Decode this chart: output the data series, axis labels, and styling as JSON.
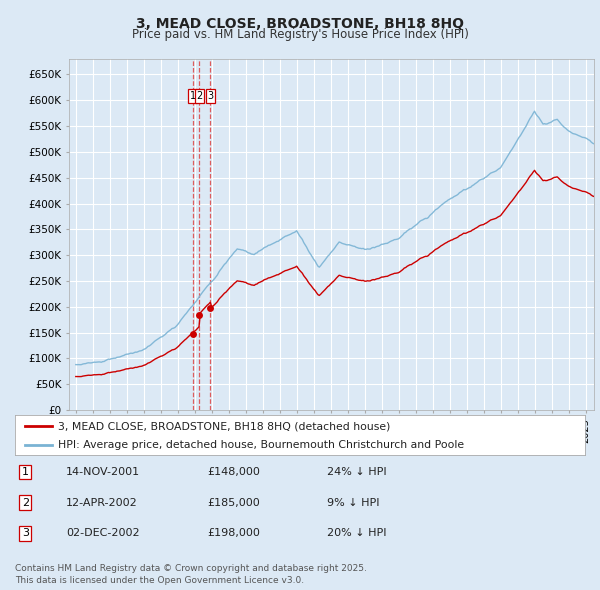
{
  "title": "3, MEAD CLOSE, BROADSTONE, BH18 8HQ",
  "subtitle": "Price paid vs. HM Land Registry's House Price Index (HPI)",
  "bg_color": "#dce9f5",
  "plot_bg_color": "#dce9f5",
  "grid_color": "#ffffff",
  "ylim": [
    0,
    680000
  ],
  "yticks": [
    0,
    50000,
    100000,
    150000,
    200000,
    250000,
    300000,
    350000,
    400000,
    450000,
    500000,
    550000,
    600000,
    650000
  ],
  "ytick_labels": [
    "£0",
    "£50K",
    "£100K",
    "£150K",
    "£200K",
    "£250K",
    "£300K",
    "£350K",
    "£400K",
    "£450K",
    "£500K",
    "£550K",
    "£600K",
    "£650K"
  ],
  "hpi_color": "#7ab3d4",
  "price_color": "#cc0000",
  "vline_color": "#dd4444",
  "transactions": [
    {
      "num": 1,
      "date_num": 2001.87,
      "price": 148000,
      "label": "1"
    },
    {
      "num": 2,
      "date_num": 2002.28,
      "price": 185000,
      "label": "2"
    },
    {
      "num": 3,
      "date_num": 2002.92,
      "price": 198000,
      "label": "3"
    }
  ],
  "transaction_rows": [
    {
      "num": "1",
      "date": "14-NOV-2001",
      "price": "£148,000",
      "pct": "24% ↓ HPI"
    },
    {
      "num": "2",
      "date": "12-APR-2002",
      "price": "£185,000",
      "pct": "9% ↓ HPI"
    },
    {
      "num": "3",
      "date": "02-DEC-2002",
      "price": "£198,000",
      "pct": "20% ↓ HPI"
    }
  ],
  "legend_line1": "3, MEAD CLOSE, BROADSTONE, BH18 8HQ (detached house)",
  "legend_line2": "HPI: Average price, detached house, Bournemouth Christchurch and Poole",
  "footer": "Contains HM Land Registry data © Crown copyright and database right 2025.\nThis data is licensed under the Open Government Licence v3.0."
}
